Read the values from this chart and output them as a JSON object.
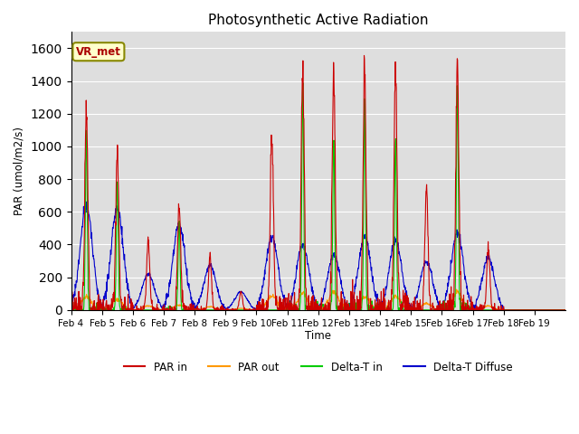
{
  "title": "Photosynthetic Active Radiation",
  "ylabel": "PAR (umol/m2/s)",
  "xlabel": "Time",
  "annotation": "VR_met",
  "ylim": [
    0,
    1700
  ],
  "yticks": [
    0,
    200,
    400,
    600,
    800,
    1000,
    1200,
    1400,
    1600
  ],
  "xtick_labels": [
    "Feb 4",
    "Feb 5",
    "Feb 6",
    "Feb 7",
    "Feb 8",
    "Feb 9",
    "Feb 10",
    "Feb 11",
    "Feb 12",
    "Feb 13",
    "Feb 14",
    "Feb 15",
    "Feb 16",
    "Feb 17",
    "Feb 18",
    "Feb 19"
  ],
  "colors": {
    "PAR_in": "#cc0000",
    "PAR_out": "#ff9900",
    "Delta_T_in": "#00cc00",
    "Delta_T_Diffuse": "#0000cc"
  },
  "bg_color": "#dedede",
  "legend_labels": [
    "PAR in",
    "PAR out",
    "Delta-T in",
    "Delta-T Diffuse"
  ],
  "par_in_peaks": [
    1250,
    980,
    420,
    640,
    320,
    110,
    1080,
    1470,
    1430,
    1410,
    1430,
    760,
    1490,
    380,
    0,
    0
  ],
  "par_out_peaks": [
    80,
    65,
    25,
    30,
    20,
    10,
    90,
    100,
    110,
    80,
    85,
    40,
    110,
    25,
    0,
    0
  ],
  "delta_t_in_peaks": [
    1100,
    800,
    0,
    550,
    0,
    0,
    0,
    1350,
    1050,
    1300,
    1050,
    0,
    1350,
    0,
    0,
    0
  ],
  "delta_t_diff_peaks": [
    650,
    620,
    220,
    520,
    270,
    110,
    450,
    400,
    340,
    450,
    430,
    300,
    470,
    320,
    0,
    0
  ],
  "n_days": 16,
  "pts_per_day": 96
}
